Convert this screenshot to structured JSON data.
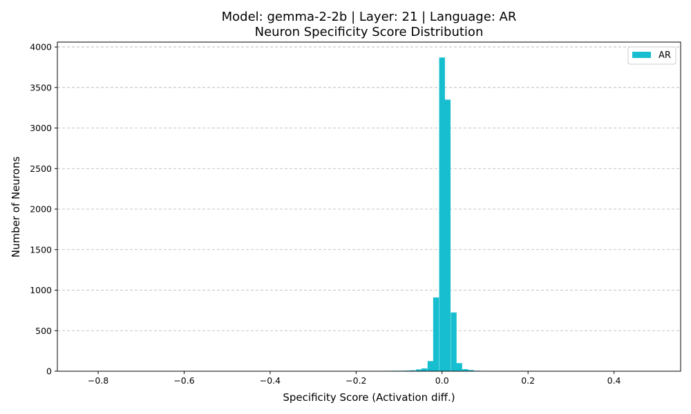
{
  "chart_data": {
    "type": "bar",
    "title_line1": "Model: gemma-2-2b | Layer: 21 | Language: AR",
    "title_line2": "Neuron Specificity Score Distribution",
    "xlabel": "Specificity Score (Activation diff.)",
    "ylabel": "Number of Neurons",
    "xlim": [
      -0.895,
      0.555
    ],
    "ylim": [
      0,
      4060
    ],
    "grid": {
      "y": true,
      "x": false,
      "style": "dashed"
    },
    "legend": {
      "position": "top-right",
      "entries": [
        "AR"
      ]
    },
    "bar_color": "#17becf",
    "bin_width": 0.01345,
    "bins": [
      {
        "x": -0.283,
        "count": 3
      },
      {
        "x": -0.229,
        "count": 3
      },
      {
        "x": -0.175,
        "count": 4
      },
      {
        "x": -0.162,
        "count": 3
      },
      {
        "x": -0.135,
        "count": 4
      },
      {
        "x": -0.122,
        "count": 5
      },
      {
        "x": -0.108,
        "count": 6
      },
      {
        "x": -0.095,
        "count": 6
      },
      {
        "x": -0.081,
        "count": 8
      },
      {
        "x": -0.068,
        "count": 11
      },
      {
        "x": -0.054,
        "count": 22
      },
      {
        "x": -0.041,
        "count": 35
      },
      {
        "x": -0.027,
        "count": 125
      },
      {
        "x": -0.014,
        "count": 910
      },
      {
        "x": 0.0,
        "count": 3870
      },
      {
        "x": 0.013,
        "count": 3350
      },
      {
        "x": 0.027,
        "count": 725
      },
      {
        "x": 0.04,
        "count": 100
      },
      {
        "x": 0.054,
        "count": 25
      },
      {
        "x": 0.067,
        "count": 14
      },
      {
        "x": 0.081,
        "count": 6
      },
      {
        "x": 0.094,
        "count": 4
      },
      {
        "x": 0.108,
        "count": 2
      }
    ],
    "xticks": [
      {
        "value": -0.8,
        "label": "−0.8"
      },
      {
        "value": -0.6,
        "label": "−0.6"
      },
      {
        "value": -0.4,
        "label": "−0.4"
      },
      {
        "value": -0.2,
        "label": "−0.2"
      },
      {
        "value": 0.0,
        "label": "0.0"
      },
      {
        "value": 0.2,
        "label": "0.2"
      },
      {
        "value": 0.4,
        "label": "0.4"
      }
    ],
    "yticks": [
      {
        "value": 0,
        "label": "0"
      },
      {
        "value": 500,
        "label": "500"
      },
      {
        "value": 1000,
        "label": "1000"
      },
      {
        "value": 1500,
        "label": "1500"
      },
      {
        "value": 2000,
        "label": "2000"
      },
      {
        "value": 2500,
        "label": "2500"
      },
      {
        "value": 3000,
        "label": "3000"
      },
      {
        "value": 3500,
        "label": "3500"
      },
      {
        "value": 4000,
        "label": "4000"
      }
    ]
  }
}
